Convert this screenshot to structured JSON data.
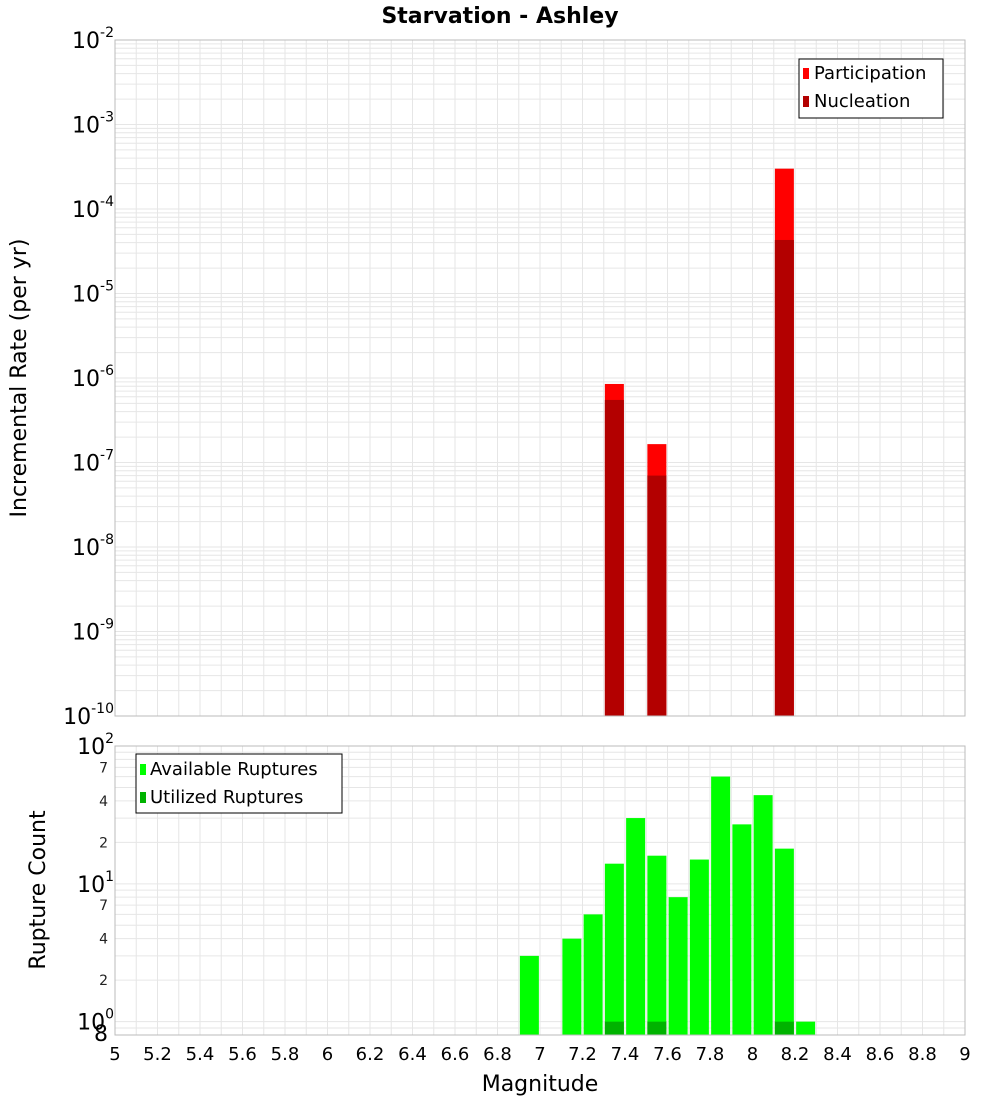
{
  "title": "Starvation - Ashley",
  "x_axis_label": "Magnitude",
  "x_ticks": [
    "5",
    "5.2",
    "5.4",
    "5.6",
    "5.8",
    "6",
    "6.2",
    "6.4",
    "6.6",
    "6.8",
    "7",
    "7.2",
    "7.4",
    "7.6",
    "7.8",
    "8",
    "8.2",
    "8.4",
    "8.6",
    "8.8",
    "9"
  ],
  "colors": {
    "participation": "#ff0000",
    "nucleation": "#b30000",
    "available": "#00ff00",
    "utilized": "#00b300",
    "grid": "#e6e6e6",
    "frame": "#bbbbbb"
  },
  "chart_data": [
    {
      "type": "bar",
      "ylabel": "Incremental Rate (per yr)",
      "yscale": "log",
      "xlim": [
        5,
        9
      ],
      "ylim": [
        1e-10,
        0.01
      ],
      "y_tick_labels": [
        {
          "base": "10",
          "exp": "-10"
        },
        {
          "base": "10",
          "exp": "-9"
        },
        {
          "base": "10",
          "exp": "-8"
        },
        {
          "base": "10",
          "exp": "-7"
        },
        {
          "base": "10",
          "exp": "-6"
        },
        {
          "base": "10",
          "exp": "-5"
        },
        {
          "base": "10",
          "exp": "-4"
        },
        {
          "base": "10",
          "exp": "-3"
        },
        {
          "base": "10",
          "exp": "-2"
        }
      ],
      "legend": {
        "position": "top-right",
        "entries": [
          "Participation",
          "Nucleation"
        ]
      },
      "series": [
        {
          "name": "Participation",
          "x": [
            7.35,
            7.55,
            8.15
          ],
          "values": [
            8.5e-07,
            1.65e-07,
            0.0003
          ]
        },
        {
          "name": "Nucleation",
          "x": [
            7.35,
            7.55,
            8.15
          ],
          "values": [
            5.5e-07,
            7e-08,
            4.3e-05
          ]
        }
      ]
    },
    {
      "type": "bar",
      "ylabel": "Rupture Count",
      "yscale": "log",
      "xlim": [
        5,
        9
      ],
      "ylim": [
        0.8,
        100
      ],
      "y_tick_labels": [
        {
          "base": "10",
          "exp": "0"
        },
        {
          "base": "10",
          "exp": "1"
        },
        {
          "base": "10",
          "exp": "2"
        }
      ],
      "y_minor_labels": [
        "8",
        "2",
        "4",
        "7",
        "2",
        "4",
        "7"
      ],
      "legend": {
        "position": "top-left",
        "entries": [
          "Available Ruptures",
          "Utilized Ruptures"
        ]
      },
      "series": [
        {
          "name": "Available Ruptures",
          "x": [
            6.95,
            7.15,
            7.25,
            7.35,
            7.45,
            7.55,
            7.65,
            7.75,
            7.85,
            7.95,
            8.05,
            8.15,
            8.25
          ],
          "values": [
            3,
            4,
            6,
            14,
            30,
            16,
            8,
            15,
            60,
            27,
            44,
            18,
            1
          ]
        },
        {
          "name": "Utilized Ruptures",
          "x": [
            7.35,
            7.55,
            8.15
          ],
          "values": [
            1,
            1,
            1
          ]
        }
      ]
    }
  ]
}
